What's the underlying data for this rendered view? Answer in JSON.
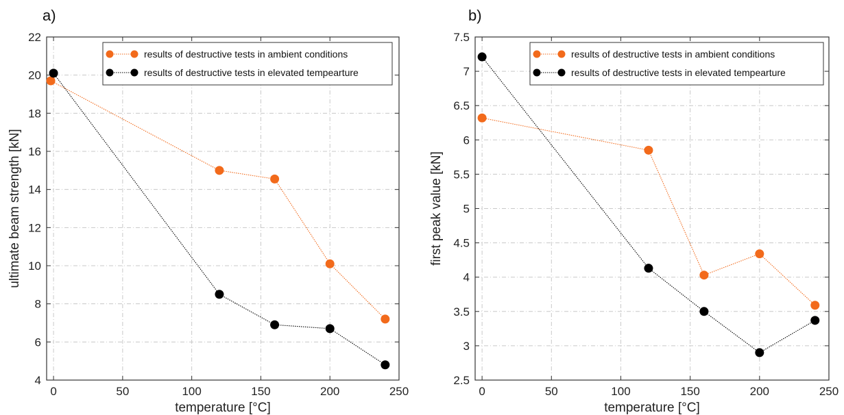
{
  "chart_data": [
    {
      "type": "line",
      "panel_label": "a)",
      "xlabel": "temperature [°C]",
      "ylabel": "ultimate beam strength [kN]",
      "xlim": [
        -5,
        250
      ],
      "ylim": [
        4,
        22
      ],
      "xticks": [
        0,
        50,
        100,
        150,
        200,
        250
      ],
      "yticks": [
        4,
        6,
        8,
        10,
        12,
        14,
        16,
        18,
        20,
        22
      ],
      "grid": true,
      "legend_position": "top-right",
      "series": [
        {
          "name": "results of destructive tests in ambient conditions",
          "color": "#f26a1b",
          "x": [
            -2,
            120,
            160,
            200,
            240
          ],
          "y": [
            19.7,
            15.0,
            14.55,
            10.1,
            7.2
          ]
        },
        {
          "name": "results of destructive tests in elevated tempearture",
          "color": "#000000",
          "x": [
            0,
            120,
            160,
            200,
            240
          ],
          "y": [
            20.1,
            8.5,
            6.9,
            6.7,
            4.8
          ]
        }
      ]
    },
    {
      "type": "line",
      "panel_label": "b)",
      "xlabel": "temperature [°C]",
      "ylabel": "first peak value [kN]",
      "xlim": [
        -5,
        250
      ],
      "ylim": [
        2.5,
        7.5
      ],
      "xticks": [
        0,
        50,
        100,
        150,
        200,
        250
      ],
      "yticks": [
        2.5,
        3,
        3.5,
        4,
        4.5,
        5,
        5.5,
        6,
        6.5,
        7,
        7.5
      ],
      "grid": true,
      "legend_position": "top-right",
      "series": [
        {
          "name": "results of destructive tests in ambient conditions",
          "color": "#f26a1b",
          "x": [
            0,
            120,
            160,
            200,
            240
          ],
          "y": [
            6.32,
            5.85,
            4.03,
            4.34,
            3.59
          ]
        },
        {
          "name": "results of destructive tests in elevated tempearture",
          "color": "#000000",
          "x": [
            0,
            120,
            160,
            200,
            240
          ],
          "y": [
            7.21,
            4.13,
            3.5,
            2.9,
            3.37
          ]
        }
      ]
    }
  ]
}
